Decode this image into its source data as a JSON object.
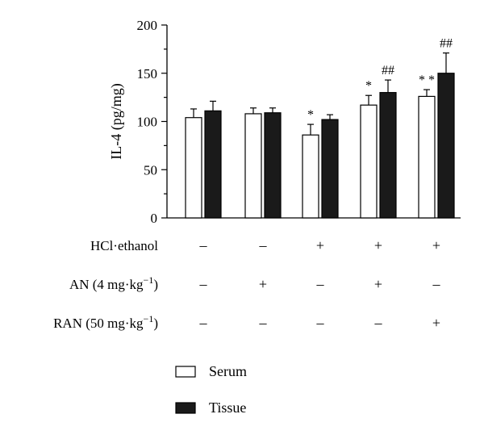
{
  "chart_data": {
    "type": "bar",
    "ylabel": "IL-4 (pg/mg)",
    "ylim": [
      0,
      200
    ],
    "yticks": [
      "0",
      "50",
      "100",
      "150",
      "200"
    ],
    "grid": false,
    "legend_position": "bottom",
    "series": [
      {
        "name": "Serum",
        "fill": "#ffffff",
        "values": [
          104,
          108,
          86,
          117,
          126
        ],
        "errors": [
          9,
          6,
          11,
          10,
          7
        ],
        "significance": [
          "",
          "",
          "*",
          "*",
          "**"
        ]
      },
      {
        "name": "Tissue",
        "fill": "#1a1a1a",
        "values": [
          111,
          109,
          102,
          130,
          150
        ],
        "errors": [
          10,
          5,
          5,
          13,
          21
        ],
        "significance": [
          "",
          "",
          "",
          "##",
          "##"
        ]
      }
    ],
    "treatments": [
      {
        "label": "HCl·ethanol",
        "unit_sup": "",
        "unit_close": "",
        "values": [
          "–",
          "–",
          "+",
          "+",
          "+"
        ]
      },
      {
        "label": "AN (4 mg·kg",
        "unit_sup": "−1",
        "unit_close": ")",
        "values": [
          "–",
          "+",
          "–",
          "+",
          "–"
        ]
      },
      {
        "label": "RAN (50 mg·kg",
        "unit_sup": "−1",
        "unit_close": ")",
        "values": [
          "–",
          "–",
          "–",
          "–",
          "+"
        ]
      }
    ]
  }
}
